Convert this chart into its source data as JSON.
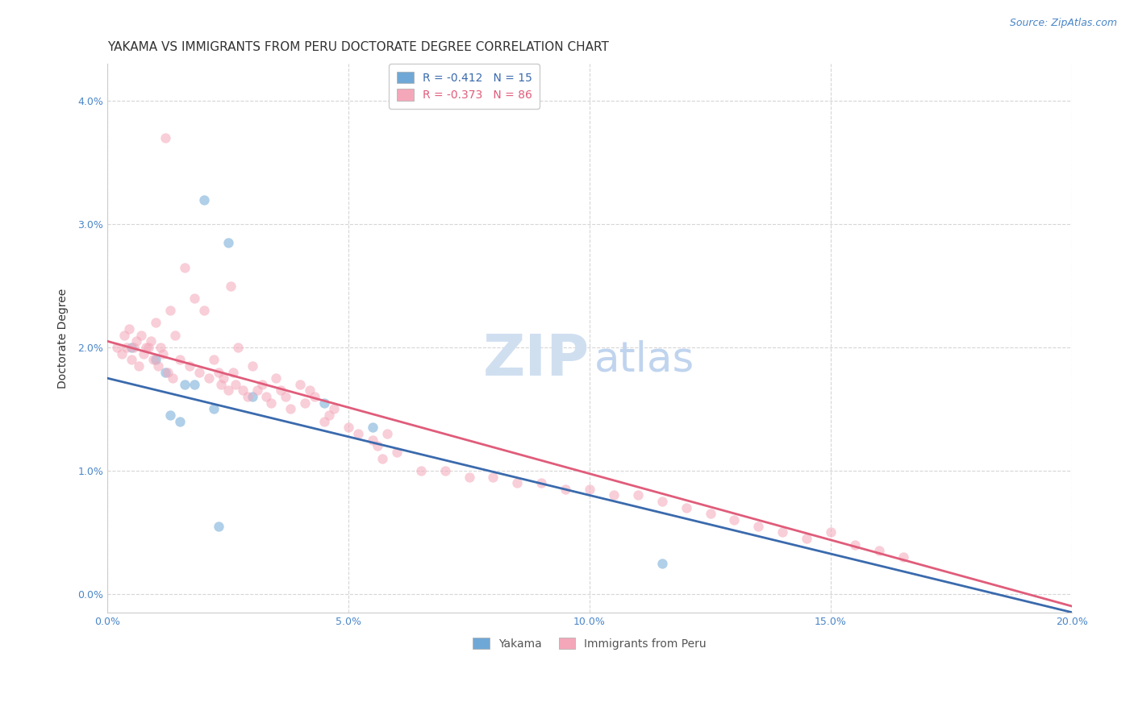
{
  "title": "YAKAMA VS IMMIGRANTS FROM PERU DOCTORATE DEGREE CORRELATION CHART",
  "source": "Source: ZipAtlas.com",
  "ylabel": "Doctorate Degree",
  "xlabel_vals": [
    0.0,
    5.0,
    10.0,
    15.0,
    20.0
  ],
  "ylabel_vals": [
    0.0,
    1.0,
    2.0,
    3.0,
    4.0
  ],
  "xlim": [
    0.0,
    20.0
  ],
  "ylim": [
    -0.15,
    4.3
  ],
  "background_color": "#ffffff",
  "legend_blue_label": "R = -0.412   N = 15",
  "legend_pink_label": "R = -0.373   N = 86",
  "blue_color": "#6fa8d6",
  "pink_color": "#f4a7b9",
  "blue_line_color": "#3a6aad",
  "pink_line_color": "#e05c7a",
  "blue_scatter_x": [
    0.5,
    1.0,
    1.2,
    1.3,
    1.5,
    1.6,
    1.8,
    2.0,
    2.2,
    2.3,
    2.5,
    3.0,
    4.5,
    5.5,
    11.5
  ],
  "blue_scatter_y": [
    2.0,
    1.9,
    1.8,
    1.45,
    1.4,
    1.7,
    1.7,
    3.2,
    1.5,
    0.55,
    2.85,
    1.6,
    1.55,
    1.35,
    0.25
  ],
  "pink_scatter_x": [
    0.2,
    0.3,
    0.35,
    0.4,
    0.45,
    0.5,
    0.55,
    0.6,
    0.65,
    0.7,
    0.75,
    0.8,
    0.85,
    0.9,
    0.95,
    1.0,
    1.05,
    1.1,
    1.15,
    1.2,
    1.25,
    1.3,
    1.35,
    1.4,
    1.5,
    1.6,
    1.7,
    1.8,
    1.9,
    2.0,
    2.1,
    2.2,
    2.3,
    2.35,
    2.4,
    2.5,
    2.55,
    2.6,
    2.65,
    2.7,
    2.8,
    2.9,
    3.0,
    3.1,
    3.2,
    3.3,
    3.4,
    3.5,
    3.6,
    3.7,
    3.8,
    4.0,
    4.1,
    4.2,
    4.3,
    4.5,
    4.6,
    4.7,
    5.0,
    5.2,
    5.5,
    5.6,
    5.7,
    5.8,
    6.0,
    6.5,
    7.0,
    7.5,
    8.0,
    8.5,
    9.0,
    9.5,
    10.0,
    10.5,
    11.0,
    11.5,
    12.0,
    12.5,
    13.0,
    13.5,
    14.0,
    14.5,
    15.0,
    15.5,
    16.0,
    16.5
  ],
  "pink_scatter_y": [
    2.0,
    1.95,
    2.1,
    2.0,
    2.15,
    1.9,
    2.0,
    2.05,
    1.85,
    2.1,
    1.95,
    2.0,
    2.0,
    2.05,
    1.9,
    2.2,
    1.85,
    2.0,
    1.95,
    3.7,
    1.8,
    2.3,
    1.75,
    2.1,
    1.9,
    2.65,
    1.85,
    2.4,
    1.8,
    2.3,
    1.75,
    1.9,
    1.8,
    1.7,
    1.75,
    1.65,
    2.5,
    1.8,
    1.7,
    2.0,
    1.65,
    1.6,
    1.85,
    1.65,
    1.7,
    1.6,
    1.55,
    1.75,
    1.65,
    1.6,
    1.5,
    1.7,
    1.55,
    1.65,
    1.6,
    1.4,
    1.45,
    1.5,
    1.35,
    1.3,
    1.25,
    1.2,
    1.1,
    1.3,
    1.15,
    1.0,
    1.0,
    0.95,
    0.95,
    0.9,
    0.9,
    0.85,
    0.85,
    0.8,
    0.8,
    0.75,
    0.7,
    0.65,
    0.6,
    0.55,
    0.5,
    0.45,
    0.5,
    0.4,
    0.35,
    0.3
  ],
  "blue_line_x": [
    0.0,
    20.0
  ],
  "blue_line_y": [
    1.75,
    -0.15
  ],
  "pink_line_x": [
    0.0,
    20.0
  ],
  "pink_line_y": [
    2.05,
    -0.1
  ],
  "grid_color": "#cccccc",
  "grid_style": "--",
  "title_fontsize": 11,
  "axis_label_fontsize": 10,
  "tick_fontsize": 9,
  "legend_fontsize": 10,
  "watermark_fontsize_zip": 52,
  "watermark_fontsize_atlas": 37,
  "watermark_color_zip": "#d0dff0",
  "watermark_color_atlas": "#c0d4ee",
  "source_fontsize": 9,
  "marker_size": 80,
  "marker_alpha": 0.55,
  "line_width": 2.0
}
